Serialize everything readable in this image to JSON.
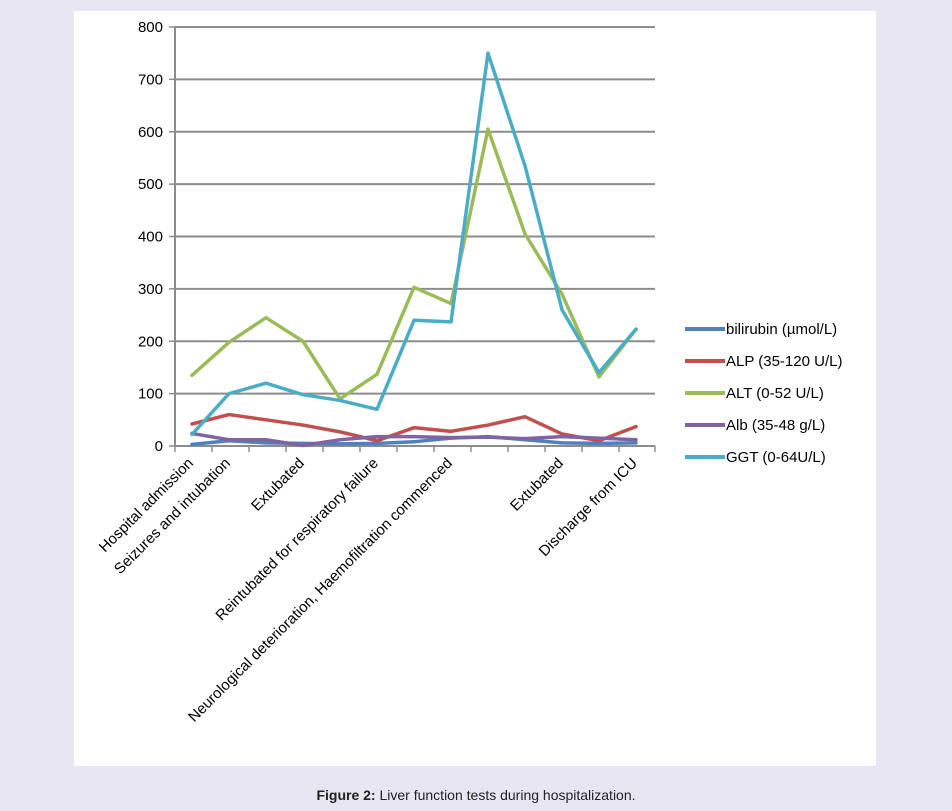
{
  "caption": {
    "label": "Figure 2:",
    "text": " Liver function tests during hospitalization."
  },
  "chart_data": {
    "type": "line",
    "title": "",
    "xlabel": "",
    "ylabel": "",
    "ylim": [
      0,
      800
    ],
    "yticks": [
      0,
      100,
      200,
      300,
      400,
      500,
      600,
      700,
      800
    ],
    "grid": "horizontal",
    "legend_position": "right",
    "categories": [
      "Hospital admission",
      "Seizures and intubation",
      "",
      "Extubated",
      "",
      "Reintubated for respiratory failure",
      "",
      "Neurological deterioration, Haemofiltration commenced",
      "",
      "",
      "Extubated",
      "",
      "Discharge from ICU"
    ],
    "series": [
      {
        "name": "bilirubin (µmol/L)",
        "color": "#4f81bd",
        "values": [
          3,
          10,
          6,
          5,
          4,
          5,
          8,
          15,
          18,
          12,
          6,
          5,
          6
        ]
      },
      {
        "name": "ALP (35-120 U/L)",
        "color": "#c0504d",
        "values": [
          42,
          60,
          50,
          40,
          27,
          10,
          35,
          28,
          40,
          56,
          23,
          10,
          37
        ]
      },
      {
        "name": "ALT (0-52 U/L)",
        "color": "#9bbb59",
        "values": [
          135,
          198,
          245,
          200,
          90,
          137,
          303,
          272,
          605,
          405,
          290,
          132,
          223
        ]
      },
      {
        "name": "Alb (35-48 g/L)",
        "color": "#8064a2",
        "values": [
          24,
          12,
          12,
          1,
          12,
          18,
          18,
          16,
          17,
          14,
          18,
          15,
          12
        ]
      },
      {
        "name": "GGT (0-64U/L)",
        "color": "#4bacc6",
        "values": [
          22,
          100,
          120,
          98,
          87,
          70,
          240,
          237,
          750,
          535,
          260,
          140,
          223
        ]
      }
    ]
  }
}
